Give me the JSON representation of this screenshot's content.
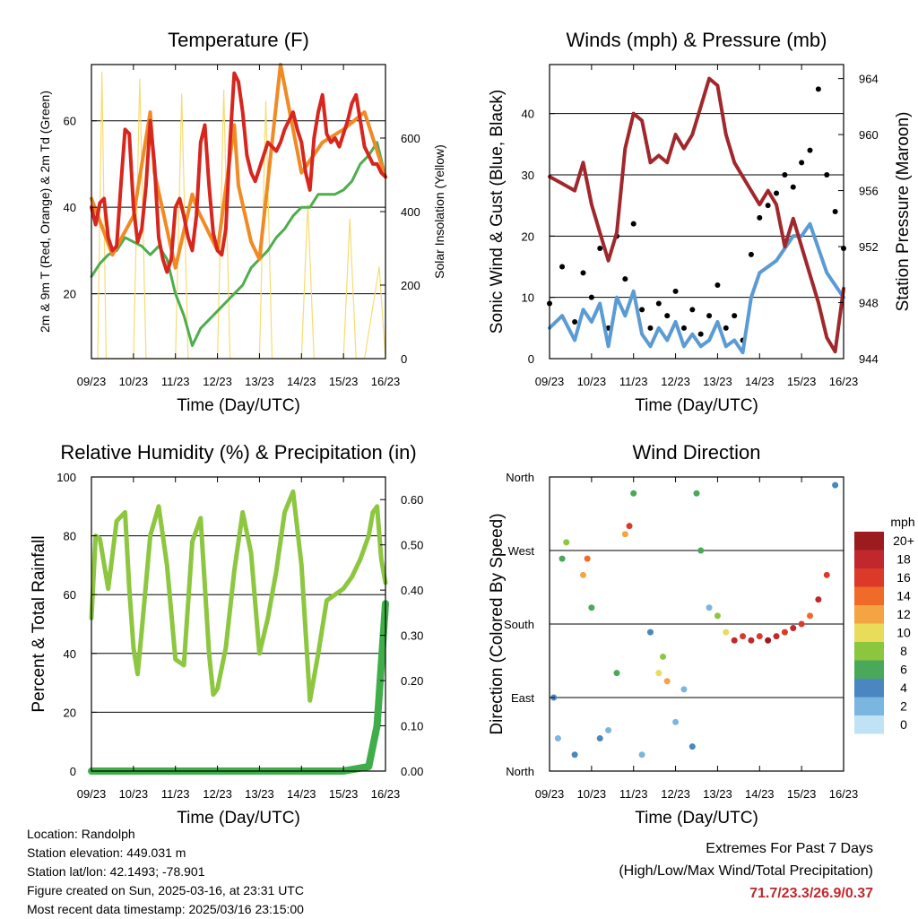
{
  "chart_data": [
    {
      "type": "line",
      "title": "Temperature (F)",
      "xlabel": "Time (Day/UTC)",
      "ylabel": "2m & 9m T (Red, Orange) & 2m Td (Green)",
      "ylabel_right": "Solar Insolation (Yellow)",
      "x_ticks": [
        "09/23",
        "10/23",
        "11/23",
        "12/23",
        "13/23",
        "14/23",
        "15/23",
        "16/23"
      ],
      "ylim": [
        5,
        73
      ],
      "y_ticks": [
        "20",
        "40",
        "60"
      ],
      "y2lim": [
        0,
        800
      ],
      "y2_ticks": [
        "0",
        "200",
        "400",
        "600"
      ],
      "grid": true,
      "colors": {
        "t2m": "#d7261e",
        "t9m": "#f08a24",
        "td2m": "#4cae4c",
        "solar": "#f7dc6f"
      },
      "series": [
        {
          "x": [
            0,
            0.1,
            0.2,
            0.3,
            0.4,
            0.5,
            0.6,
            0.7,
            0.8,
            0.9,
            1.0,
            1.1,
            1.2,
            1.3,
            1.4,
            1.5,
            1.6,
            1.7,
            1.8,
            1.9,
            2.0,
            2.1,
            2.2,
            2.3,
            2.4,
            2.5,
            2.6,
            2.7,
            2.8,
            2.9,
            3.0,
            3.1,
            3.2,
            3.3,
            3.4,
            3.5,
            3.6,
            3.7,
            3.8,
            3.9,
            4.0,
            4.1,
            4.2,
            4.3,
            4.4,
            4.5,
            4.6,
            4.7,
            4.8,
            4.9,
            5.0,
            5.1,
            5.2,
            5.3,
            5.4,
            5.5,
            5.6,
            5.7,
            5.8,
            5.9,
            6.0,
            6.1,
            6.2,
            6.3,
            6.4,
            6.5,
            6.6,
            6.7,
            6.8,
            6.9,
            7.0
          ],
          "values": [
            40,
            36,
            41,
            42,
            33,
            30,
            31,
            45,
            58,
            57,
            40,
            32,
            35,
            45,
            60,
            50,
            33,
            28,
            25,
            28,
            40,
            42,
            38,
            33,
            30,
            38,
            55,
            59,
            45,
            34,
            30,
            29,
            35,
            55,
            71,
            69,
            62,
            52,
            48,
            46,
            49,
            52,
            55,
            54,
            53,
            55,
            58,
            60,
            62,
            58,
            55,
            48,
            44,
            56,
            62,
            66,
            57,
            55,
            56,
            54,
            57,
            60,
            64,
            66,
            60,
            54,
            52,
            50,
            50,
            48,
            47
          ]
        },
        {
          "x": [
            0,
            0.5,
            1.0,
            1.4,
            1.5,
            2.0,
            2.4,
            2.5,
            3.0,
            3.4,
            3.5,
            3.8,
            4.0,
            4.5,
            5.0,
            5.5,
            6.0,
            6.5,
            7.0
          ],
          "values": [
            42,
            29,
            38,
            62,
            48,
            26,
            43,
            40,
            30,
            59,
            45,
            32,
            28,
            73,
            48,
            55,
            58,
            62,
            47
          ]
        },
        {
          "x": [
            0,
            0.2,
            0.4,
            0.6,
            0.8,
            1.0,
            1.2,
            1.4,
            1.6,
            1.8,
            2.0,
            2.2,
            2.4,
            2.6,
            2.8,
            3.0,
            3.2,
            3.4,
            3.6,
            3.8,
            4.0,
            4.2,
            4.4,
            4.6,
            4.8,
            5.0,
            5.2,
            5.4,
            5.6,
            5.8,
            6.0,
            6.2,
            6.4,
            6.6,
            6.8,
            7.0
          ],
          "values": [
            24,
            27,
            29,
            30,
            33,
            32,
            31,
            29,
            31,
            28,
            20,
            15,
            8,
            12,
            14,
            16,
            18,
            20,
            22,
            26,
            28,
            30,
            33,
            35,
            38,
            40,
            40,
            43,
            43,
            43,
            44,
            46,
            50,
            52,
            55,
            47
          ]
        },
        {
          "x": [
            0,
            0.15,
            0.25,
            0.35,
            0.5,
            0.85,
            1.0,
            1.15,
            1.3,
            1.5,
            1.85,
            2.0,
            2.15,
            2.3,
            2.5,
            2.85,
            3.0,
            3.15,
            3.3,
            3.5,
            3.85,
            4.0,
            4.15,
            4.3,
            4.5,
            4.85,
            5.0,
            5.15,
            5.3,
            5.5,
            5.85,
            6.0,
            6.15,
            6.3,
            6.5,
            6.85,
            7.0
          ],
          "values": [
            0,
            0,
            780,
            0,
            0,
            0,
            0,
            760,
            0,
            0,
            0,
            0,
            720,
            0,
            0,
            0,
            0,
            730,
            0,
            0,
            0,
            0,
            700,
            0,
            0,
            0,
            0,
            420,
            0,
            0,
            0,
            0,
            380,
            0,
            0,
            250,
            0
          ]
        }
      ]
    },
    {
      "type": "line",
      "title": "Winds (mph) & Pressure (mb)",
      "xlabel": "Time (Day/UTC)",
      "ylabel": "Sonic Wind & Gust (Blue, Black)",
      "ylabel_right": "Station Pressure (Maroon)",
      "x_ticks": [
        "09/23",
        "10/23",
        "11/23",
        "12/23",
        "13/23",
        "14/23",
        "15/23",
        "16/23"
      ],
      "ylim": [
        0,
        48
      ],
      "y_ticks": [
        "0",
        "10",
        "20",
        "30",
        "40"
      ],
      "y2lim": [
        944,
        965
      ],
      "y2_ticks": [
        "944",
        "948",
        "952",
        "956",
        "960",
        "964"
      ],
      "grid": true,
      "colors": {
        "wind": "#5a9bd4",
        "gust": "#000000",
        "pressure": "#a0282d"
      },
      "series": [
        {
          "x": [
            0,
            0.3,
            0.6,
            0.8,
            1.0,
            1.2,
            1.4,
            1.6,
            1.8,
            2.0,
            2.2,
            2.4,
            2.6,
            2.8,
            3.0,
            3.2,
            3.4,
            3.6,
            3.8,
            4.0,
            4.2,
            4.4,
            4.6,
            4.8,
            5.0,
            5.2,
            5.4,
            5.6,
            5.8,
            6.0,
            6.2,
            6.4,
            6.6,
            6.8,
            7.0
          ],
          "values": [
            5,
            7,
            3,
            8,
            6,
            9,
            2,
            10,
            7,
            11,
            4,
            2,
            5,
            3,
            6,
            2,
            4,
            2,
            3,
            6,
            2,
            3,
            1,
            10,
            14,
            15,
            16,
            18,
            20,
            20,
            22,
            18,
            14,
            12,
            10
          ]
        },
        {
          "x": [
            0,
            0.3,
            0.6,
            0.8,
            1.0,
            1.2,
            1.4,
            1.6,
            1.8,
            2.0,
            2.2,
            2.4,
            2.6,
            2.8,
            3.0,
            3.2,
            3.4,
            3.6,
            3.8,
            4.0,
            4.2,
            4.4,
            4.6,
            4.8,
            5.0,
            5.2,
            5.4,
            5.6,
            5.8,
            6.0,
            6.2,
            6.4,
            6.6,
            6.8,
            7.0
          ],
          "values": [
            9,
            15,
            6,
            14,
            10,
            18,
            5,
            20,
            13,
            22,
            8,
            5,
            9,
            7,
            11,
            5,
            8,
            4,
            7,
            12,
            5,
            7,
            3,
            17,
            23,
            25,
            27,
            30,
            28,
            32,
            34,
            44,
            30,
            24,
            18
          ]
        },
        {
          "x": [
            0,
            0.3,
            0.6,
            0.8,
            1.0,
            1.2,
            1.4,
            1.6,
            1.8,
            2.0,
            2.2,
            2.4,
            2.6,
            2.8,
            3.0,
            3.2,
            3.4,
            3.6,
            3.8,
            4.0,
            4.2,
            4.4,
            4.6,
            4.8,
            5.0,
            5.2,
            5.4,
            5.6,
            5.8,
            6.0,
            6.2,
            6.4,
            6.6,
            6.8,
            7.0
          ],
          "values": [
            957,
            956.5,
            956,
            958,
            955,
            953,
            951,
            953,
            959,
            961.5,
            961,
            958,
            958.5,
            958,
            960,
            959,
            960,
            962,
            964,
            963.5,
            960,
            958,
            957,
            956,
            955,
            956,
            955,
            952,
            954,
            952,
            950,
            948,
            945.5,
            944.5,
            949
          ]
        }
      ]
    },
    {
      "type": "line",
      "title": "Relative Humidity (%) & Precipitation (in)",
      "xlabel": "Time (Day/UTC)",
      "ylabel": "Percent & Total Rainfall",
      "x_ticks": [
        "09/23",
        "10/23",
        "11/23",
        "12/23",
        "13/23",
        "14/23",
        "15/23",
        "16/23"
      ],
      "ylim": [
        0,
        100
      ],
      "y_ticks": [
        "0",
        "20",
        "40",
        "60",
        "80",
        "100"
      ],
      "y2lim": [
        0,
        0.65
      ],
      "y2_ticks": [
        "0.00",
        "0.10",
        "0.20",
        "0.30",
        "0.40",
        "0.50",
        "0.60"
      ],
      "grid": true,
      "colors": {
        "rh": "#8dc63f",
        "precip": "#3fae49"
      },
      "series": [
        {
          "x": [
            0,
            0.1,
            0.2,
            0.4,
            0.6,
            0.8,
            0.9,
            1.0,
            1.1,
            1.2,
            1.4,
            1.6,
            1.8,
            2.0,
            2.2,
            2.4,
            2.6,
            2.8,
            2.9,
            3.0,
            3.2,
            3.4,
            3.6,
            3.8,
            4.0,
            4.2,
            4.4,
            4.6,
            4.8,
            5.0,
            5.2,
            5.4,
            5.6,
            5.8,
            6.0,
            6.2,
            6.4,
            6.6,
            6.7,
            6.8,
            6.9,
            7.0
          ],
          "values": [
            52,
            80,
            79,
            62,
            85,
            88,
            62,
            42,
            33,
            48,
            80,
            90,
            70,
            38,
            36,
            78,
            86,
            40,
            26,
            28,
            42,
            68,
            88,
            74,
            40,
            52,
            68,
            88,
            95,
            70,
            24,
            40,
            58,
            60,
            62,
            66,
            72,
            80,
            88,
            90,
            72,
            64
          ]
        },
        {
          "x": [
            0,
            1,
            2,
            3,
            4,
            5,
            6,
            6.6,
            6.8,
            7.0
          ],
          "values": [
            0,
            0,
            0,
            0,
            0,
            0,
            0,
            0.01,
            0.1,
            0.37
          ]
        }
      ]
    },
    {
      "type": "scatter",
      "title": "Wind Direction",
      "xlabel": "Time (Day/UTC)",
      "ylabel": "Direction (Colored By Speed)",
      "x_ticks": [
        "09/23",
        "10/23",
        "11/23",
        "12/23",
        "13/23",
        "14/23",
        "15/23",
        "16/23"
      ],
      "y_ticks": [
        "North",
        "East",
        "South",
        "West",
        "North"
      ],
      "ylim": [
        0,
        360
      ],
      "grid": true,
      "legend": {
        "title": "mph",
        "labels": [
          "20+",
          "18",
          "16",
          "14",
          "12",
          "10",
          "8",
          "6",
          "4",
          "2",
          "0"
        ],
        "colors": [
          "#9b1b1e",
          "#c0282d",
          "#db3a2b",
          "#f06a2a",
          "#f5a443",
          "#e8dc5a",
          "#8cc63f",
          "#4aa85a",
          "#4a86c0",
          "#7bb6e0",
          "#bfe3f5"
        ],
        "placement": "right"
      },
      "points": [
        {
          "x": 0.1,
          "dir": 90,
          "speed": 4
        },
        {
          "x": 0.2,
          "dir": 40,
          "speed": 2
        },
        {
          "x": 0.3,
          "dir": 260,
          "speed": 6
        },
        {
          "x": 0.4,
          "dir": 280,
          "speed": 8
        },
        {
          "x": 0.6,
          "dir": 20,
          "speed": 4
        },
        {
          "x": 0.8,
          "dir": 240,
          "speed": 12
        },
        {
          "x": 0.9,
          "dir": 260,
          "speed": 14
        },
        {
          "x": 1.0,
          "dir": 200,
          "speed": 6
        },
        {
          "x": 1.2,
          "dir": 40,
          "speed": 4
        },
        {
          "x": 1.4,
          "dir": 50,
          "speed": 2
        },
        {
          "x": 1.6,
          "dir": 120,
          "speed": 6
        },
        {
          "x": 1.8,
          "dir": 290,
          "speed": 12
        },
        {
          "x": 1.9,
          "dir": 300,
          "speed": 16
        },
        {
          "x": 2.0,
          "dir": 340,
          "speed": 6
        },
        {
          "x": 2.2,
          "dir": 20,
          "speed": 2
        },
        {
          "x": 2.4,
          "dir": 170,
          "speed": 4
        },
        {
          "x": 2.6,
          "dir": 120,
          "speed": 10
        },
        {
          "x": 2.7,
          "dir": 140,
          "speed": 8
        },
        {
          "x": 2.8,
          "dir": 110,
          "speed": 12
        },
        {
          "x": 3.0,
          "dir": 60,
          "speed": 2
        },
        {
          "x": 3.2,
          "dir": 100,
          "speed": 2
        },
        {
          "x": 3.4,
          "dir": 30,
          "speed": 4
        },
        {
          "x": 3.5,
          "dir": 340,
          "speed": 6
        },
        {
          "x": 3.6,
          "dir": 270,
          "speed": 6
        },
        {
          "x": 3.8,
          "dir": 200,
          "speed": 2
        },
        {
          "x": 4.0,
          "dir": 190,
          "speed": 8
        },
        {
          "x": 4.2,
          "dir": 170,
          "speed": 10
        },
        {
          "x": 4.4,
          "dir": 160,
          "speed": 18
        },
        {
          "x": 4.6,
          "dir": 165,
          "speed": 16
        },
        {
          "x": 4.8,
          "dir": 160,
          "speed": 18
        },
        {
          "x": 5.0,
          "dir": 165,
          "speed": 16
        },
        {
          "x": 5.2,
          "dir": 160,
          "speed": 20
        },
        {
          "x": 5.4,
          "dir": 165,
          "speed": 18
        },
        {
          "x": 5.6,
          "dir": 170,
          "speed": 16
        },
        {
          "x": 5.8,
          "dir": 175,
          "speed": 18
        },
        {
          "x": 6.0,
          "dir": 180,
          "speed": 16
        },
        {
          "x": 6.2,
          "dir": 190,
          "speed": 14
        },
        {
          "x": 6.4,
          "dir": 210,
          "speed": 18
        },
        {
          "x": 6.6,
          "dir": 240,
          "speed": 16
        },
        {
          "x": 6.8,
          "dir": 350,
          "speed": 4
        }
      ]
    }
  ],
  "info": {
    "location": "Location: Randolph",
    "elevation": "Station elevation: 449.031 m",
    "latlon": "Station lat/lon: 42.1493; -78.901",
    "created": "Figure created on Sun, 2025-03-16, at 23:31 UTC",
    "recent": "Most recent data timestamp: 2025/03/16 23:15:00"
  },
  "extremes": {
    "title": "Extremes For Past 7 Days",
    "subtitle": "(High/Low/Max Wind/Total Precipitation)",
    "value": "71.7/23.3/26.9/0.37"
  }
}
